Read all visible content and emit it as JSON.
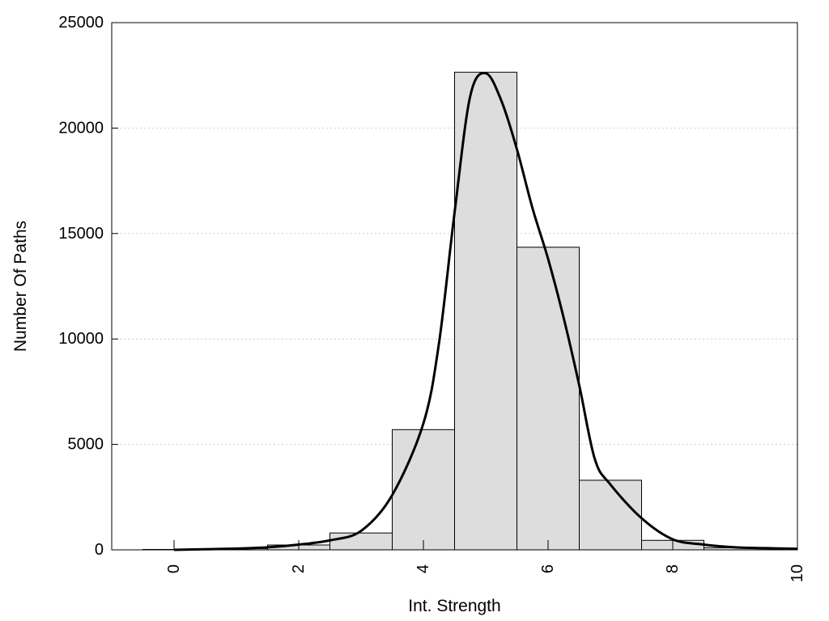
{
  "chart_data": {
    "type": "bar",
    "title": "",
    "xlabel": "Int. Strength",
    "ylabel": "Number Of Paths",
    "xlim": [
      -1,
      10
    ],
    "ylim": [
      0,
      25000
    ],
    "x_ticks": [
      0,
      2,
      4,
      6,
      8,
      10
    ],
    "y_ticks": [
      0,
      5000,
      10000,
      15000,
      20000,
      25000
    ],
    "grid": "horizontal dotted",
    "bar_color": "#dddddd",
    "bars": [
      {
        "x": 0,
        "value": 20
      },
      {
        "x": 1,
        "value": 60
      },
      {
        "x": 2,
        "value": 230
      },
      {
        "x": 3,
        "value": 800
      },
      {
        "x": 4,
        "value": 5700
      },
      {
        "x": 5,
        "value": 22650
      },
      {
        "x": 6,
        "value": 14350
      },
      {
        "x": 7,
        "value": 3300
      },
      {
        "x": 8,
        "value": 450
      },
      {
        "x": 9,
        "value": 100
      },
      {
        "x": 10,
        "value": 50
      }
    ],
    "curve": {
      "type": "line",
      "color": "#000000",
      "x": [
        0,
        0.5,
        1,
        1.5,
        2,
        2.5,
        3,
        3.5,
        4,
        4.25,
        4.5,
        4.75,
        5,
        5.25,
        5.5,
        5.75,
        6,
        6.25,
        6.5,
        6.75,
        7,
        7.5,
        8,
        8.5,
        9,
        9.5,
        10
      ],
      "y": [
        0,
        30,
        60,
        120,
        250,
        450,
        900,
        2600,
        6000,
        9800,
        16000,
        21500,
        22600,
        21300,
        19000,
        16200,
        13800,
        11000,
        7800,
        4300,
        3100,
        1500,
        500,
        250,
        120,
        80,
        50
      ]
    }
  }
}
